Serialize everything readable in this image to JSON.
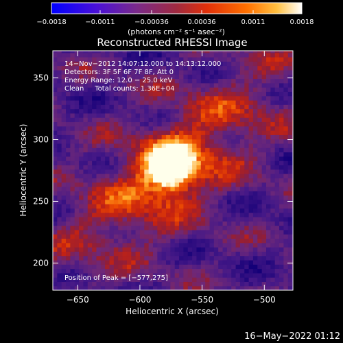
{
  "chart_data": {
    "type": "heatmap",
    "title": "Reconstructed RHESSI Image",
    "xlabel": "Heliocentric X (arcsec)",
    "ylabel": "Heliocentric Y (arcsec)",
    "xlim": [
      -670,
      -477
    ],
    "ylim": [
      178,
      372
    ],
    "x_ticks": [
      -650,
      -600,
      -550,
      -500
    ],
    "y_ticks": [
      200,
      250,
      300,
      350
    ],
    "x_tick_labels": [
      "−650",
      "−600",
      "−550",
      "−500"
    ],
    "y_tick_labels": [
      "200",
      "250",
      "300",
      "350"
    ],
    "colorbar": {
      "range": [
        -0.0018,
        0.0018
      ],
      "ticks": [
        -0.0018,
        -0.0011,
        -0.00036,
        0.00036,
        0.0011,
        0.0018
      ],
      "tick_labels": [
        "−0.0018",
        "−0.0011",
        "−0.00036",
        "0.00036",
        "0.0011",
        "0.0018"
      ],
      "units": "(photons cm⁻² s⁻¹ asec⁻²)",
      "colors": [
        "#0000ff",
        "#5a1fc8",
        "#7a2a8a",
        "#c0281e",
        "#ff5a00",
        "#ffb020",
        "#ffffff"
      ]
    },
    "info_lines": [
      "14−Nov−2012 14:07:12.000 to 14:13:12.000",
      "Detectors: 3F 5F 6F 7F 8F, Att 0",
      "Energy Range: 12.0 − 25.0 keV",
      "Clean     Total counts: 1.36E+04"
    ],
    "peak_label": "Position of Peak = [−577,275]",
    "peak": {
      "x": -577,
      "y": 275
    },
    "grid": false
  },
  "timestamp": "16−May−2022 01:12"
}
